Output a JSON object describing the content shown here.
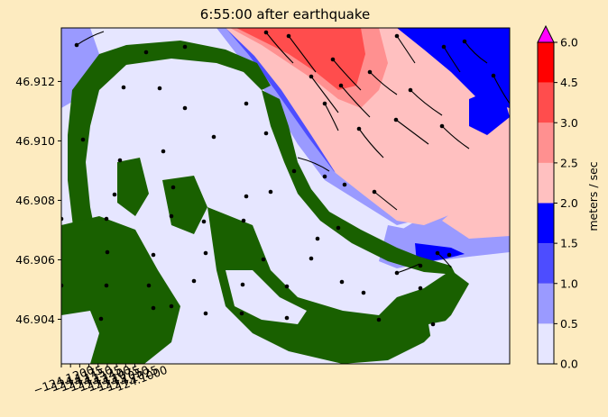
{
  "chart_data": {
    "type": "heatmap",
    "title": "6:55:00 after earthquake",
    "xlim": [
      -124.12,
      -123.998
    ],
    "ylim": [
      46.9025,
      46.9138
    ],
    "x_ticks": [
      -124.12,
      -124.1175,
      -124.115,
      -124.1125,
      -124.11,
      -124.1075,
      -124.105,
      -124.1025,
      -124.1
    ],
    "x_tick_labels": [
      "−124.1200",
      "−124.1175",
      "−124.1150",
      "−124.1125",
      "−124.1100",
      "−124.1075",
      "−124.1050",
      "−124.1025",
      "−124.1000"
    ],
    "y_ticks": [
      46.904,
      46.906,
      46.908,
      46.91,
      46.912
    ],
    "y_tick_labels": [
      "46.904",
      "46.906",
      "46.908",
      "46.910",
      "46.912"
    ],
    "colorbar": {
      "label": "meters / sec",
      "levels": [
        0.0,
        0.5,
        1.0,
        1.5,
        2.0,
        2.5,
        3.0,
        4.5,
        6.0
      ],
      "level_labels": [
        "0.0",
        "0.5",
        "1.0",
        "1.5",
        "2.0",
        "2.5",
        "3.0",
        "4.5",
        "6.0"
      ],
      "colors": [
        "#e6e6ff",
        "#9a9aff",
        "#4d4dff",
        "#0000ff",
        "#ffc0c0",
        "#ff9090",
        "#ff4d4d",
        "#ff0000"
      ],
      "extend_color": "#ff00ff",
      "extend": "max"
    },
    "land_color": "#196000",
    "arrow_color": "#000000"
  }
}
